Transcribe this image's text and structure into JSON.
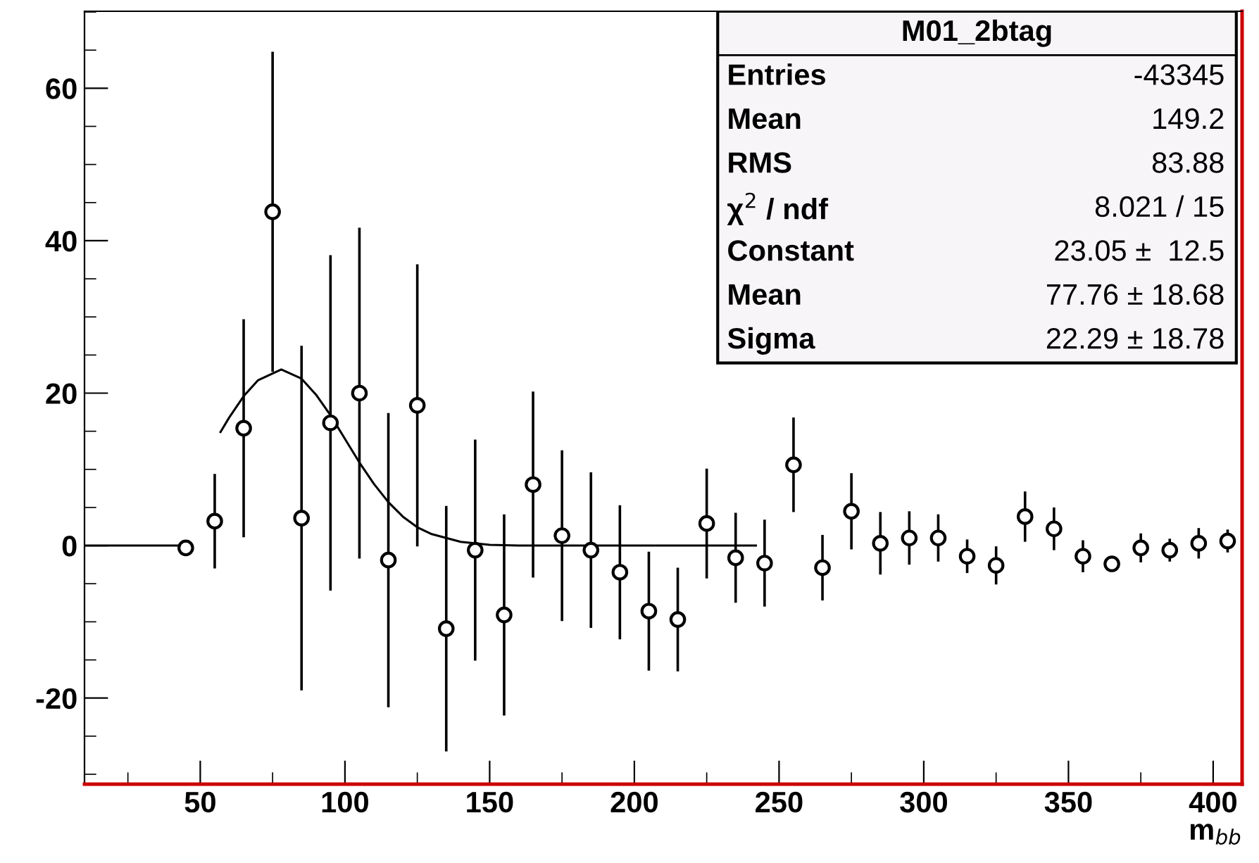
{
  "chart_data": {
    "type": "scatter",
    "title": "M01_2btag",
    "xlabel": "m$_{bb}$",
    "xlim": [
      10,
      410
    ],
    "ylim": [
      -31.3,
      70.1
    ],
    "xticks": [
      {
        "value": 25,
        "label": null
      },
      50,
      {
        "value": 75,
        "label": null
      },
      100,
      {
        "value": 125,
        "label": null
      },
      150,
      {
        "value": 175,
        "label": null
      },
      200,
      {
        "value": 225,
        "label": null
      },
      250,
      {
        "value": 275,
        "label": null
      },
      300,
      {
        "value": 325,
        "label": null
      },
      350,
      {
        "value": 375,
        "label": null
      },
      400
    ],
    "yticks": [
      {
        "value": -30,
        "label": null
      },
      {
        "value": -25,
        "label": null
      },
      -20,
      {
        "value": -15,
        "label": null
      },
      {
        "value": -10,
        "label": null
      },
      {
        "value": -5,
        "label": null
      },
      0,
      {
        "value": 5,
        "label": null
      },
      {
        "value": 10,
        "label": null
      },
      {
        "value": 15,
        "label": null
      },
      20,
      {
        "value": 25,
        "label": null
      },
      {
        "value": 30,
        "label": null
      },
      {
        "value": 35,
        "label": null
      },
      40,
      {
        "value": 45,
        "label": null
      },
      {
        "value": 50,
        "label": null
      },
      {
        "value": 55,
        "label": null
      },
      60,
      {
        "value": 65,
        "label": null
      },
      {
        "value": 70,
        "label": null
      }
    ],
    "marker": "circle",
    "grid": false,
    "series": [
      {
        "color": "#000000",
        "x": [
          45,
          55,
          65,
          75,
          85,
          95,
          105,
          115,
          125,
          135,
          145,
          155,
          165,
          175,
          185,
          195,
          205,
          215,
          225,
          235,
          245,
          255,
          265,
          275,
          285,
          295,
          305,
          315,
          325,
          335,
          345,
          355,
          365,
          375,
          385,
          395,
          405
        ],
        "values": [
          -0.3,
          3.2,
          15.4,
          43.8,
          3.6,
          16.1,
          20.0,
          -1.9,
          18.4,
          -10.9,
          -0.6,
          -9.1,
          8.0,
          1.3,
          -0.6,
          -3.5,
          -8.6,
          -9.7,
          2.9,
          -1.6,
          -2.3,
          10.6,
          -2.9,
          4.5,
          0.3,
          1.0,
          1.0,
          -1.4,
          -2.6,
          3.8,
          2.2,
          -1.4,
          -2.4,
          -0.3,
          -0.6,
          0.3,
          0.6
        ],
        "errors": [
          null,
          6.2,
          14.3,
          21,
          22.6,
          22,
          21.7,
          19.3,
          18.5,
          16.1,
          14.5,
          13.2,
          12.2,
          11.2,
          10.2,
          8.8,
          7.8,
          6.8,
          7.2,
          5.9,
          5.7,
          6.2,
          4.3,
          5,
          4.1,
          3.5,
          3.1,
          2.2,
          2.5,
          3.3,
          2.8,
          2.1,
          0.9,
          1.9,
          1.5,
          2,
          1.5
        ]
      },
      {
        "type": "line",
        "color": "#000000",
        "marker": "none",
        "x": [
          57,
          60,
          65,
          70,
          78,
          85,
          90,
          95,
          100,
          105,
          110,
          115,
          120,
          125,
          130,
          140,
          150,
          160,
          242
        ],
        "values": [
          14.9,
          16.8,
          19.6,
          21.7,
          23.1,
          21.9,
          19.8,
          17.1,
          14.0,
          10.9,
          8.1,
          5.7,
          3.8,
          2.4,
          1.5,
          0.5,
          0.1,
          0,
          0
        ]
      },
      {
        "type": "line",
        "color": "#000000",
        "marker": "none",
        "x": [
          10,
          45
        ],
        "values": [
          0,
          0
        ]
      }
    ],
    "annotations": [
      "Entries",
      "-43345",
      "Mean",
      "149.2",
      "RMS",
      "83.88",
      "χ$^{2}$ / ndf",
      "8.021 / 15",
      "Constant",
      "23.05 ±  12.5",
      "Mean",
      "77.76 ± 18.68",
      "Sigma",
      "22.29 ± 18.78"
    ]
  }
}
